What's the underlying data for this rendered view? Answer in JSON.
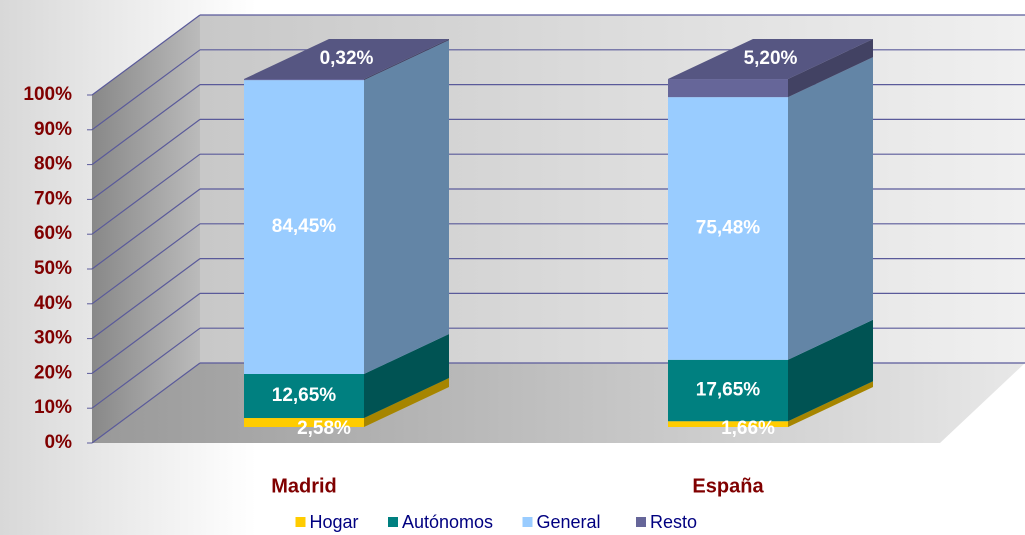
{
  "chart_data": {
    "type": "bar",
    "stacked": true,
    "categories": [
      "Madrid",
      "España"
    ],
    "series": [
      {
        "name": "Hogar",
        "color": "#ffcc00",
        "values": [
          2.58,
          1.66
        ],
        "value_labels": [
          "2,58%",
          "1,66%"
        ]
      },
      {
        "name": "Autónomos",
        "color": "#008080",
        "values": [
          12.65,
          17.65
        ],
        "value_labels": [
          "12,65%",
          "17,65%"
        ]
      },
      {
        "name": "General",
        "color": "#99ccff",
        "values": [
          84.45,
          75.48
        ],
        "value_labels": [
          "84,45%",
          "75,48%"
        ]
      },
      {
        "name": "Resto",
        "color": "#666699",
        "values": [
          0.32,
          5.2
        ],
        "value_labels": [
          "0,32%",
          "5,20%"
        ]
      }
    ],
    "ylim": [
      0,
      100
    ],
    "yticks": [
      {
        "value": 0,
        "label": "0%"
      },
      {
        "value": 10,
        "label": "10%"
      },
      {
        "value": 20,
        "label": "20%"
      },
      {
        "value": 30,
        "label": "30%"
      },
      {
        "value": 40,
        "label": "40%"
      },
      {
        "value": 50,
        "label": "50%"
      },
      {
        "value": 60,
        "label": "60%"
      },
      {
        "value": 70,
        "label": "70%"
      },
      {
        "value": 80,
        "label": "80%"
      },
      {
        "value": 90,
        "label": "90%"
      },
      {
        "value": 100,
        "label": "100%"
      }
    ],
    "grid": true,
    "legend": "bottom"
  }
}
